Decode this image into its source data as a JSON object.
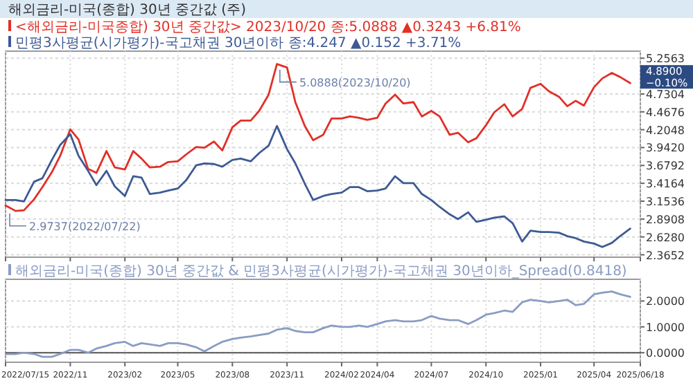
{
  "chart_data": [
    {
      "type": "line",
      "title": "해외금리-미국(종합) 30년 중간값 (주)",
      "legend": "top left",
      "grid": true,
      "tick_labels": "y",
      "x": [
        "2022-07-15",
        "2022-08-01",
        "2022-08-15",
        "2022-09-01",
        "2022-09-15",
        "2022-10-01",
        "2022-10-15",
        "2022-11-01",
        "2022-11-15",
        "2022-12-01",
        "2022-12-15",
        "2023-01-01",
        "2023-01-15",
        "2023-02-01",
        "2023-02-15",
        "2023-03-01",
        "2023-03-15",
        "2023-04-01",
        "2023-04-15",
        "2023-05-01",
        "2023-05-15",
        "2023-06-01",
        "2023-06-15",
        "2023-07-01",
        "2023-07-15",
        "2023-08-01",
        "2023-08-15",
        "2023-09-01",
        "2023-09-15",
        "2023-10-01",
        "2023-10-15",
        "2023-11-01",
        "2023-11-15",
        "2023-12-01",
        "2023-12-15",
        "2024-01-01",
        "2024-01-15",
        "2024-02-01",
        "2024-02-15",
        "2024-03-01",
        "2024-03-15",
        "2024-04-01",
        "2024-04-15",
        "2024-05-01",
        "2024-05-15",
        "2024-06-01",
        "2024-06-15",
        "2024-07-01",
        "2024-07-15",
        "2024-08-01",
        "2024-08-15",
        "2024-09-01",
        "2024-09-15",
        "2024-10-01",
        "2024-10-15",
        "2024-11-01",
        "2024-11-15",
        "2024-12-01",
        "2024-12-15",
        "2025-01-01",
        "2025-01-15",
        "2025-02-01",
        "2025-02-15",
        "2025-03-01",
        "2025-03-15",
        "2025-04-01",
        "2025-04-15",
        "2025-05-01",
        "2025-05-15",
        "2025-06-01"
      ],
      "xlim": [
        "2022-07-15",
        "2025-06-18"
      ],
      "xticks": [
        {
          "value": "2022-07-15",
          "label": null
        },
        {
          "value": "2022-11-01",
          "label": null
        },
        {
          "value": "2023-02-01",
          "label": null
        },
        {
          "value": "2023-05-01",
          "label": null
        },
        {
          "value": "2023-08-01",
          "label": null
        },
        {
          "value": "2023-11-01",
          "label": null
        },
        {
          "value": "2024-02-01",
          "label": null
        },
        {
          "value": "2024-04-01",
          "label": null
        },
        {
          "value": "2024-07-01",
          "label": null
        },
        {
          "value": "2024-10-01",
          "label": null
        },
        {
          "value": "2025-01-01",
          "label": null
        },
        {
          "value": "2025-04-01",
          "label": null
        },
        {
          "value": "2025-06-18",
          "label": null
        }
      ],
      "ylim": [
        2.33,
        5.36
      ],
      "yticks": [
        {
          "value": 2.3652,
          "label": "2.3652"
        },
        {
          "value": 2.628,
          "label": "2.6280"
        },
        {
          "value": 2.8908,
          "label": "2.8908"
        },
        {
          "value": 3.1536,
          "label": "3.1536"
        },
        {
          "value": 3.4164,
          "label": "3.4164"
        },
        {
          "value": 3.6792,
          "label": "3.6792"
        },
        {
          "value": 3.942,
          "label": "3.9420"
        },
        {
          "value": 4.2048,
          "label": "4.2048"
        },
        {
          "value": 4.4676,
          "label": "4.4676"
        },
        {
          "value": 4.7304,
          "label": "4.7304"
        },
        {
          "value": 5.2563,
          "label": "5.2563"
        }
      ],
      "series": [
        {
          "name": "<해외금리-미국종합) 30년 중간값> 2023/10/20 종:5.0888 ▲0.3243 +6.81%",
          "color": "#e03028",
          "values": [
            3.09,
            3.01,
            3.02,
            3.18,
            3.36,
            3.58,
            3.82,
            4.21,
            4.06,
            3.63,
            3.57,
            3.89,
            3.65,
            3.62,
            3.89,
            3.78,
            3.65,
            3.66,
            3.73,
            3.74,
            3.84,
            3.95,
            3.94,
            4.03,
            3.9,
            4.24,
            4.34,
            4.34,
            4.48,
            4.72,
            5.17,
            5.12,
            4.61,
            4.26,
            4.05,
            4.13,
            4.37,
            4.37,
            4.4,
            4.38,
            4.35,
            4.38,
            4.59,
            4.72,
            4.59,
            4.61,
            4.4,
            4.48,
            4.4,
            4.13,
            4.16,
            4.02,
            4.08,
            4.27,
            4.46,
            4.58,
            4.4,
            4.51,
            4.82,
            4.88,
            4.77,
            4.69,
            4.55,
            4.63,
            4.56,
            4.83,
            4.96,
            5.04,
            4.98,
            4.89
          ]
        },
        {
          "name": "민평3사평균(시가평가)-국고채권 30년이하 종:4.247 ▲0.152 +3.71%",
          "color": "#3d5a94",
          "values": [
            3.17,
            3.17,
            3.15,
            3.44,
            3.49,
            3.76,
            3.98,
            4.14,
            3.82,
            3.6,
            3.39,
            3.6,
            3.37,
            3.23,
            3.52,
            3.5,
            3.26,
            3.28,
            3.31,
            3.34,
            3.46,
            3.68,
            3.71,
            3.7,
            3.66,
            3.76,
            3.78,
            3.74,
            3.86,
            3.97,
            4.26,
            3.92,
            3.71,
            3.41,
            3.17,
            3.23,
            3.26,
            3.28,
            3.36,
            3.36,
            3.3,
            3.31,
            3.34,
            3.52,
            3.42,
            3.42,
            3.26,
            3.17,
            3.07,
            2.96,
            2.89,
            2.99,
            2.85,
            2.88,
            2.91,
            2.93,
            2.83,
            2.56,
            2.72,
            2.7,
            2.7,
            2.69,
            2.64,
            2.61,
            2.56,
            2.53,
            2.48,
            2.54,
            2.64,
            2.75
          ]
        }
      ],
      "annotations": [
        {
          "text": "2.9737(2022/07/22)",
          "x": "2022-07-22",
          "y": 2.9737
        },
        {
          "text": "5.0888(2023/10/20)",
          "x": "2023-10-20",
          "y": 5.0888
        },
        "4.8900 −0.10%"
      ]
    },
    {
      "type": "line",
      "legend": "top left",
      "grid": true,
      "x": [
        "2022-07-15",
        "2022-08-01",
        "2022-08-15",
        "2022-09-01",
        "2022-09-15",
        "2022-10-01",
        "2022-10-15",
        "2022-11-01",
        "2022-11-15",
        "2022-12-01",
        "2022-12-15",
        "2023-01-01",
        "2023-01-15",
        "2023-02-01",
        "2023-02-15",
        "2023-03-01",
        "2023-03-15",
        "2023-04-01",
        "2023-04-15",
        "2023-05-01",
        "2023-05-15",
        "2023-06-01",
        "2023-06-15",
        "2023-07-01",
        "2023-07-15",
        "2023-08-01",
        "2023-08-15",
        "2023-09-01",
        "2023-09-15",
        "2023-10-01",
        "2023-10-15",
        "2023-11-01",
        "2023-11-15",
        "2023-12-01",
        "2023-12-15",
        "2024-01-01",
        "2024-01-15",
        "2024-02-01",
        "2024-02-15",
        "2024-03-01",
        "2024-03-15",
        "2024-04-01",
        "2024-04-15",
        "2024-05-01",
        "2024-05-15",
        "2024-06-01",
        "2024-06-15",
        "2024-07-01",
        "2024-07-15",
        "2024-08-01",
        "2024-08-15",
        "2024-09-01",
        "2024-09-15",
        "2024-10-01",
        "2024-10-15",
        "2024-11-01",
        "2024-11-15",
        "2024-12-01",
        "2024-12-15",
        "2025-01-01",
        "2025-01-15",
        "2025-02-01",
        "2025-02-15",
        "2025-03-01",
        "2025-03-15",
        "2025-04-01",
        "2025-04-15",
        "2025-05-01",
        "2025-05-15",
        "2025-06-01"
      ],
      "xlim": [
        "2022-07-15",
        "2025-06-18"
      ],
      "xticks": [
        {
          "value": "2022-07-15",
          "label": "2022/07/15"
        },
        {
          "value": "2022-11-01",
          "label": "2022/11"
        },
        {
          "value": "2023-02-01",
          "label": "2023/02"
        },
        {
          "value": "2023-05-01",
          "label": "2023/05"
        },
        {
          "value": "2023-08-01",
          "label": "2023/08"
        },
        {
          "value": "2023-11-01",
          "label": "2023/11"
        },
        {
          "value": "2024-02-01",
          "label": "2024/02"
        },
        {
          "value": "2024-04-01",
          "label": "2024/04"
        },
        {
          "value": "2024-07-01",
          "label": "2024/07"
        },
        {
          "value": "2024-10-01",
          "label": "2024/10"
        },
        {
          "value": "2025-01-01",
          "label": "2025/01"
        },
        {
          "value": "2025-04-01",
          "label": "2025/04"
        },
        {
          "value": "2025-06-18",
          "label": "2025/06/18"
        }
      ],
      "ylim": [
        -0.37,
        2.84
      ],
      "yticks": [
        {
          "value": 0,
          "label": "0.0000"
        },
        {
          "value": 1,
          "label": "1.0000"
        },
        {
          "value": 2,
          "label": "2.0000"
        }
      ],
      "ref_lines": [
        {
          "axis": "y",
          "value": 0,
          "color": "#555555"
        }
      ],
      "series": [
        {
          "name": "해외금리-미국(종합) 30년 중간값 & 민평3사평균(시가평가)-국고채권 30년이하_Spread(0.8418)",
          "color": "#8a9cc4",
          "values": [
            -0.05,
            -0.05,
            0.0,
            -0.05,
            -0.16,
            -0.16,
            -0.05,
            0.11,
            0.11,
            0.0,
            0.16,
            0.26,
            0.37,
            0.42,
            0.26,
            0.37,
            0.32,
            0.26,
            0.37,
            0.37,
            0.32,
            0.21,
            0.05,
            0.26,
            0.42,
            0.53,
            0.58,
            0.63,
            0.68,
            0.74,
            0.89,
            0.95,
            0.84,
            0.79,
            0.79,
            0.95,
            1.05,
            1.0,
            1.0,
            1.05,
            1.0,
            1.11,
            1.21,
            1.26,
            1.21,
            1.21,
            1.26,
            1.42,
            1.32,
            1.26,
            1.26,
            1.11,
            1.26,
            1.47,
            1.53,
            1.63,
            1.58,
            1.95,
            2.05,
            2.0,
            1.95,
            2.0,
            2.05,
            1.84,
            1.89,
            2.26,
            2.32,
            2.37,
            2.26,
            2.16
          ]
        }
      ]
    }
  ]
}
